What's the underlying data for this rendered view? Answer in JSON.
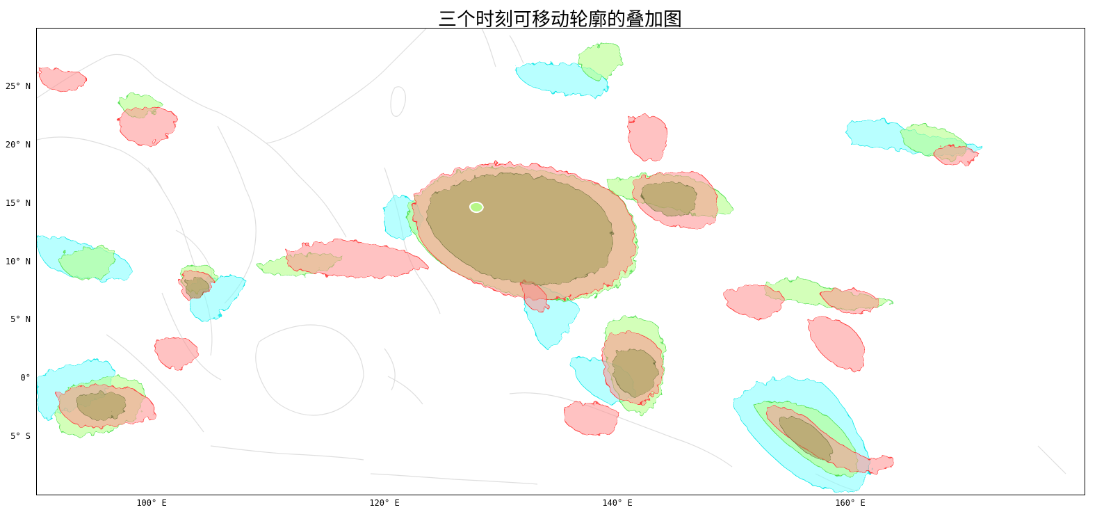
{
  "title": "三个时刻可移动轮廓的叠加图",
  "axes": {
    "lat_labels": [
      "25° N",
      "20° N",
      "15° N",
      "10° N",
      "5° N",
      "0°",
      "5° S"
    ],
    "lon_labels": [
      "100° E",
      "120° E",
      "140° E",
      "160° E"
    ]
  },
  "map": {
    "extent": {
      "lon": [
        90,
        180
      ],
      "lat": [
        -10,
        30
      ]
    },
    "coastline_color": "#dedede",
    "layers": [
      {
        "color": "#00ffff",
        "label": "cyan-contours"
      },
      {
        "color": "#7dff7d",
        "label": "green-contours"
      },
      {
        "color": "#ff4d4d",
        "label": "red-contours"
      }
    ]
  }
}
